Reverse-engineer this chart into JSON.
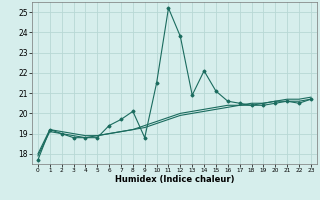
{
  "xlabel": "Humidex (Indice chaleur)",
  "background_color": "#d6eeec",
  "grid_color": "#b8d8d5",
  "line_color": "#1a6b5e",
  "xlim": [
    -0.5,
    23.5
  ],
  "ylim": [
    17.5,
    25.5
  ],
  "yticks": [
    18,
    19,
    20,
    21,
    22,
    23,
    24,
    25
  ],
  "xticks": [
    0,
    1,
    2,
    3,
    4,
    5,
    6,
    7,
    8,
    9,
    10,
    11,
    12,
    13,
    14,
    15,
    16,
    17,
    18,
    19,
    20,
    21,
    22,
    23
  ],
  "series1_x": [
    0,
    1,
    2,
    3,
    4,
    5,
    6,
    7,
    8,
    9,
    10,
    11,
    12,
    13,
    14,
    15,
    16,
    17,
    18,
    19,
    20,
    21,
    22,
    23
  ],
  "series1_y": [
    17.7,
    19.2,
    19.0,
    18.8,
    18.8,
    18.8,
    19.4,
    19.7,
    20.1,
    18.8,
    21.5,
    25.2,
    23.8,
    20.9,
    22.1,
    21.1,
    20.6,
    20.5,
    20.4,
    20.4,
    20.5,
    20.6,
    20.5,
    20.7
  ],
  "series2_x": [
    0,
    1,
    2,
    3,
    4,
    5,
    6,
    7,
    8,
    9,
    10,
    11,
    12,
    13,
    14,
    15,
    16,
    17,
    18,
    19,
    20,
    21,
    22,
    23
  ],
  "series2_y": [
    17.9,
    19.1,
    19.0,
    18.9,
    18.8,
    18.9,
    19.0,
    19.1,
    19.2,
    19.3,
    19.5,
    19.7,
    19.9,
    20.0,
    20.1,
    20.2,
    20.3,
    20.4,
    20.4,
    20.5,
    20.6,
    20.6,
    20.6,
    20.7
  ],
  "series3_x": [
    0,
    1,
    2,
    3,
    4,
    5,
    6,
    7,
    8,
    9,
    10,
    11,
    12,
    13,
    14,
    15,
    16,
    17,
    18,
    19,
    20,
    21,
    22,
    23
  ],
  "series3_y": [
    18.0,
    19.2,
    19.1,
    19.0,
    18.9,
    18.9,
    19.0,
    19.1,
    19.2,
    19.4,
    19.6,
    19.8,
    20.0,
    20.1,
    20.2,
    20.3,
    20.4,
    20.4,
    20.5,
    20.5,
    20.6,
    20.7,
    20.7,
    20.8
  ]
}
